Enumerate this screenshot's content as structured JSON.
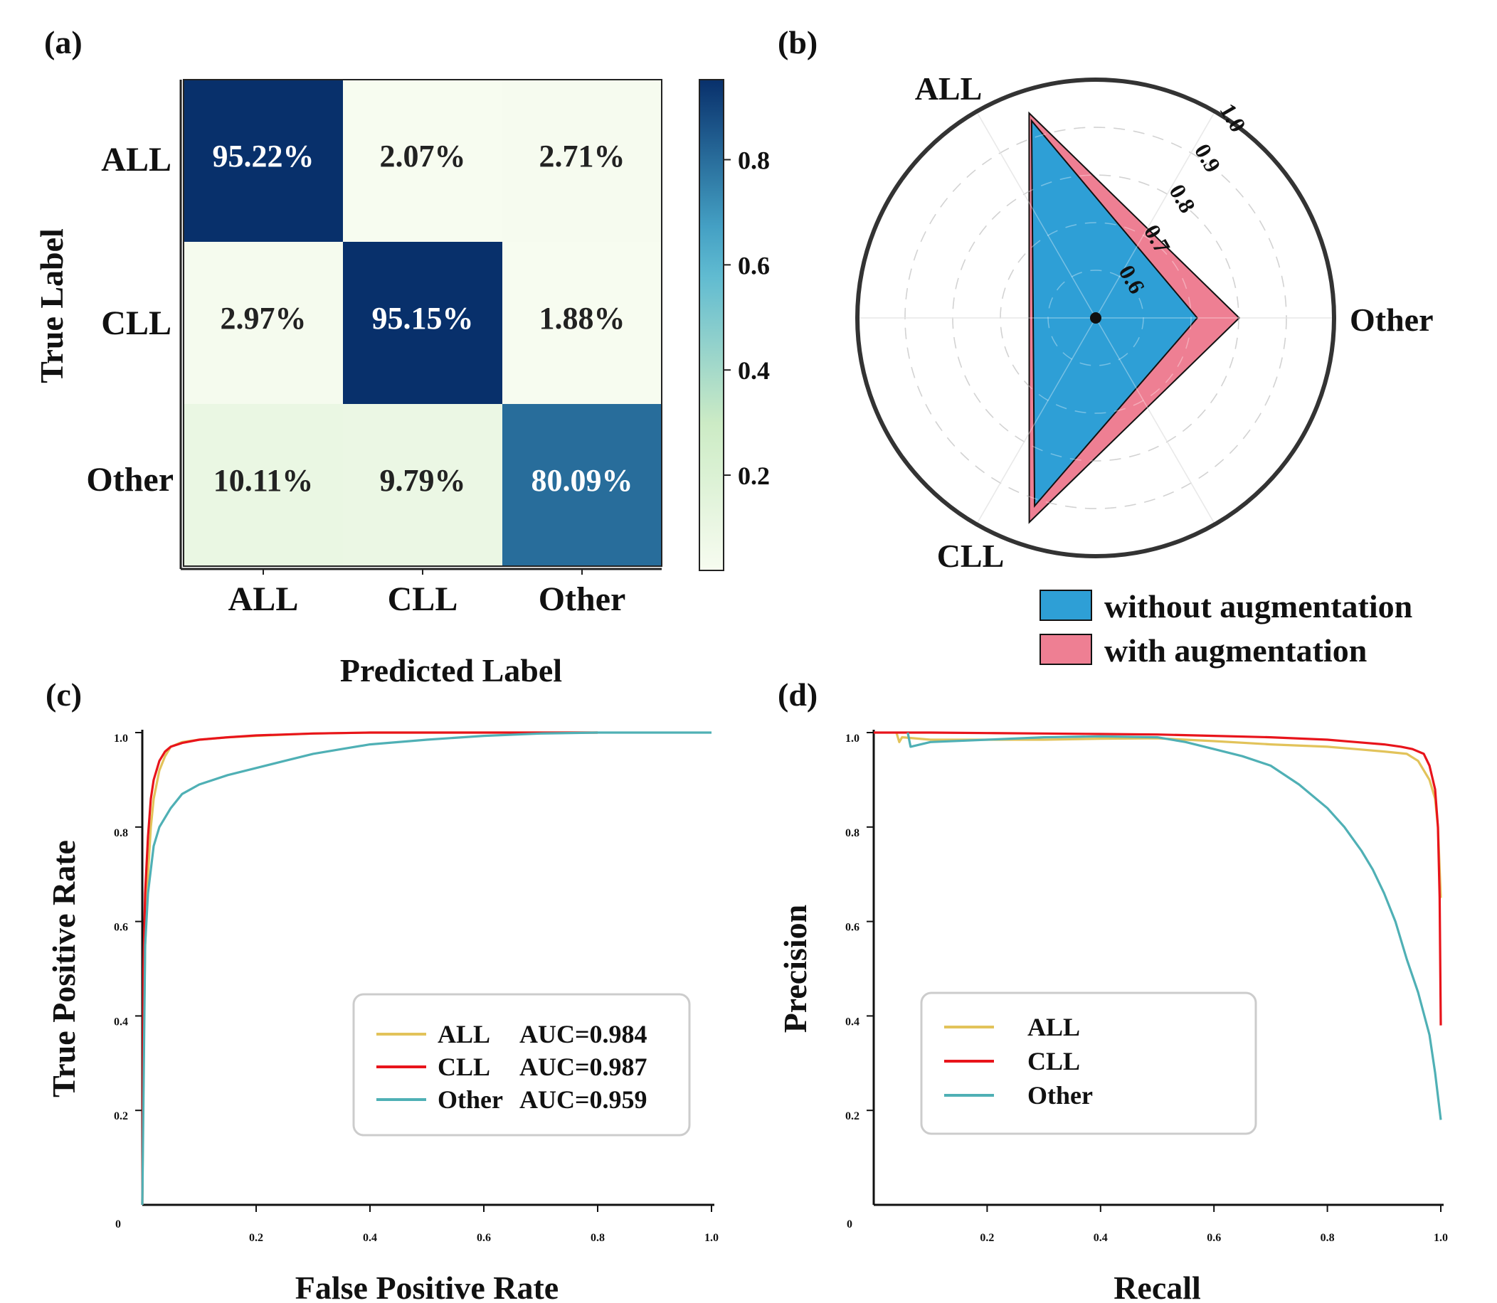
{
  "panels": {
    "a": "(a)",
    "b": "(b)",
    "c": "(c)",
    "d": "(d)"
  },
  "colors": {
    "ALL": "#e2c35a",
    "CLL": "#e8141b",
    "Other": "#4fb0b5",
    "without_aug": "#2e9fd6",
    "with_aug": "#ee7f93",
    "cm_high": "#08306b",
    "cm_low": "#f7fcf0"
  },
  "chart_data": [
    {
      "panel": "(a)",
      "type": "heatmap",
      "xlabel": "Predicted Label",
      "ylabel": "True Label",
      "categories": [
        "ALL",
        "CLL",
        "Other"
      ],
      "values": [
        [
          0.9522,
          0.0207,
          0.0271
        ],
        [
          0.0297,
          0.9515,
          0.0188
        ],
        [
          0.1011,
          0.0979,
          0.8009
        ]
      ],
      "labels": [
        [
          "95.22%",
          "2.07%",
          "2.71%"
        ],
        [
          "2.97%",
          "95.15%",
          "1.88%"
        ],
        [
          "10.11%",
          "9.79%",
          "80.09%"
        ]
      ],
      "colorbar": {
        "ticks": [
          "0.2",
          "0.4",
          "0.6",
          "0.8"
        ],
        "tick_values": [
          0.2,
          0.4,
          0.6,
          0.8
        ],
        "range": [
          0.0188,
          0.9522
        ]
      }
    },
    {
      "panel": "(b)",
      "type": "radar",
      "axes": [
        "ALL",
        "CLL",
        "Other"
      ],
      "rlim": [
        0.5,
        1.0
      ],
      "rticks": [
        "0.6",
        "0.7",
        "0.8",
        "0.9",
        "1.0"
      ],
      "series": [
        {
          "name": "with augmentation",
          "values": [
            0.952,
            0.951,
            0.801
          ]
        },
        {
          "name": "without augmentation",
          "values": [
            0.935,
            0.915,
            0.713
          ]
        }
      ],
      "legend_placement": "bottom-right"
    },
    {
      "panel": "(c)",
      "type": "line",
      "xlabel": "False Positive Rate",
      "ylabel": "True Positive Rate",
      "xlim": [
        0,
        1
      ],
      "ylim": [
        0,
        1
      ],
      "xticks": [
        "0.2",
        "0.4",
        "0.6",
        "0.8",
        "1.0"
      ],
      "yticks": [
        "0.2",
        "0.4",
        "0.6",
        "0.8",
        "1.0"
      ],
      "origin_label": "0",
      "grid": false,
      "legend_placement": "lower-right",
      "series": [
        {
          "name": "ALL",
          "auc_label": "AUC=0.984",
          "x": [
            0,
            0.002,
            0.005,
            0.01,
            0.015,
            0.02,
            0.03,
            0.04,
            0.05,
            0.07,
            0.1,
            0.15,
            0.2,
            0.3,
            0.4,
            0.6,
            0.8
          ],
          "y": [
            0,
            0.3,
            0.55,
            0.7,
            0.8,
            0.86,
            0.92,
            0.95,
            0.97,
            0.98,
            0.985,
            0.99,
            0.993,
            0.998,
            1.0,
            1.0,
            1.0
          ]
        },
        {
          "name": "CLL",
          "auc_label": "AUC=0.987",
          "x": [
            0,
            0.002,
            0.005,
            0.01,
            0.015,
            0.02,
            0.03,
            0.04,
            0.05,
            0.07,
            0.1,
            0.15,
            0.2,
            0.3,
            0.4,
            0.6,
            0.8
          ],
          "y": [
            0,
            0.5,
            0.66,
            0.78,
            0.86,
            0.9,
            0.94,
            0.96,
            0.97,
            0.978,
            0.985,
            0.99,
            0.994,
            0.998,
            1.0,
            1.0,
            1.0
          ]
        },
        {
          "name": "Other",
          "auc_label": "AUC=0.959",
          "x": [
            0,
            0.005,
            0.01,
            0.02,
            0.03,
            0.05,
            0.07,
            0.1,
            0.15,
            0.2,
            0.25,
            0.3,
            0.35,
            0.4,
            0.5,
            0.6,
            0.7,
            0.8,
            1.0
          ],
          "y": [
            0,
            0.55,
            0.66,
            0.76,
            0.8,
            0.84,
            0.87,
            0.89,
            0.91,
            0.925,
            0.94,
            0.955,
            0.965,
            0.975,
            0.985,
            0.993,
            0.998,
            1.0,
            1.0
          ]
        }
      ]
    },
    {
      "panel": "(d)",
      "type": "line",
      "xlabel": "Recall",
      "ylabel": "Precision",
      "xlim": [
        0,
        1
      ],
      "ylim": [
        0,
        1
      ],
      "xticks": [
        "0.2",
        "0.4",
        "0.6",
        "0.8",
        "1.0"
      ],
      "yticks": [
        "0.2",
        "0.4",
        "0.6",
        "0.8",
        "1.0"
      ],
      "origin_label": "0",
      "grid": false,
      "legend_placement": "lower-left",
      "series": [
        {
          "name": "ALL",
          "x": [
            0.04,
            0.045,
            0.05,
            0.1,
            0.2,
            0.3,
            0.4,
            0.5,
            0.6,
            0.7,
            0.8,
            0.85,
            0.9,
            0.94,
            0.96,
            0.98,
            0.99,
            0.995,
            1.0
          ],
          "y": [
            1.0,
            0.98,
            0.99,
            0.985,
            0.985,
            0.985,
            0.987,
            0.988,
            0.982,
            0.975,
            0.97,
            0.965,
            0.96,
            0.955,
            0.94,
            0.9,
            0.86,
            0.8,
            0.65
          ]
        },
        {
          "name": "CLL",
          "x": [
            0.0,
            0.1,
            0.2,
            0.3,
            0.4,
            0.5,
            0.6,
            0.7,
            0.8,
            0.85,
            0.9,
            0.93,
            0.95,
            0.97,
            0.98,
            0.99,
            0.995,
            0.998,
            1.0
          ],
          "y": [
            1.0,
            1.0,
            0.999,
            0.998,
            0.997,
            0.996,
            0.993,
            0.99,
            0.985,
            0.98,
            0.975,
            0.97,
            0.965,
            0.955,
            0.93,
            0.88,
            0.8,
            0.65,
            0.38
          ]
        },
        {
          "name": "Other",
          "x": [
            0.06,
            0.065,
            0.1,
            0.2,
            0.3,
            0.4,
            0.5,
            0.55,
            0.6,
            0.65,
            0.7,
            0.75,
            0.8,
            0.83,
            0.86,
            0.88,
            0.9,
            0.92,
            0.94,
            0.96,
            0.98,
            0.99,
            1.0
          ],
          "y": [
            1.0,
            0.97,
            0.98,
            0.985,
            0.99,
            0.992,
            0.99,
            0.98,
            0.965,
            0.95,
            0.93,
            0.89,
            0.84,
            0.8,
            0.75,
            0.71,
            0.66,
            0.6,
            0.52,
            0.45,
            0.36,
            0.28,
            0.18
          ]
        }
      ]
    }
  ]
}
